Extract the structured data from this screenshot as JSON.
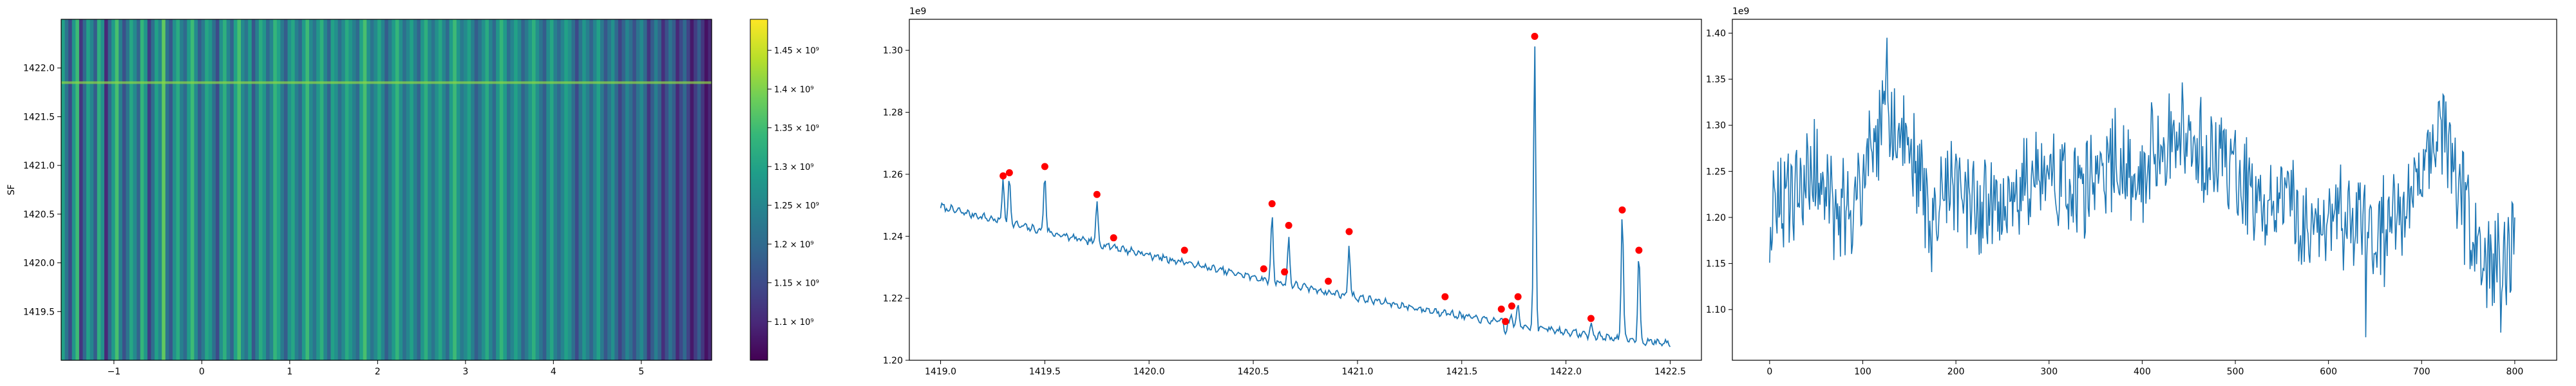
{
  "figure": {
    "heatmap_ylabel": "SF",
    "offset_line": "1e9",
    "offset_random": "1e9"
  },
  "chart_data": [
    {
      "type": "heatmap",
      "title": "",
      "xlabel": "",
      "ylabel": "SF",
      "xlim": [
        -1.6,
        5.8
      ],
      "ylim": [
        1419.0,
        1422.5
      ],
      "xticks": [
        -1,
        0,
        1,
        2,
        3,
        4,
        5
      ],
      "yticks": [
        1419.5,
        1420.0,
        1420.5,
        1421.0,
        1421.5,
        1422.0
      ],
      "colormap": "viridis",
      "colorbar": {
        "range": [
          1050000000,
          1490000000
        ],
        "ticks": [
          1100000000,
          1150000000,
          1200000000,
          1250000000,
          1300000000,
          1350000000,
          1400000000,
          1450000000
        ],
        "tick_labels": [
          "1.1 × 10⁹",
          "1.15 × 10⁹",
          "1.2 × 10⁹",
          "1.25 × 10⁹",
          "1.3 × 10⁹",
          "1.35 × 10⁹",
          "1.4 × 10⁹",
          "1.45 × 10⁹"
        ]
      },
      "columns": [
        1300000000.0,
        1220000000.0,
        1150000000.0,
        1280000000.0,
        1350000000.0,
        1120000000.0,
        1200000000.0,
        1300000000.0,
        1250000000.0,
        1180000000.0,
        1330000000.0,
        1270000000.0,
        1100000000.0,
        1200000000.0,
        1290000000.0,
        1360000000.0,
        1240000000.0,
        1160000000.0,
        1220000000.0,
        1310000000.0,
        1260000000.0,
        1190000000.0,
        1340000000.0,
        1280000000.0,
        1130000000.0,
        1210000000.0,
        1300000000.0,
        1250000000.0,
        1380000000.0,
        1220000000.0,
        1170000000.0,
        1270000000.0,
        1320000000.0,
        1240000000.0,
        1200000000.0,
        1290000000.0,
        1350000000.0,
        1260000000.0,
        1180000000.0,
        1230000000.0,
        1310000000.0,
        1280000000.0,
        1210000000.0,
        1150000000.0,
        1270000000.0,
        1330000000.0,
        1250000000.0,
        1190000000.0,
        1300000000.0,
        1360000000.0,
        1260000000.0,
        1220000000.0,
        1290000000.0,
        1170000000.0,
        1240000000.0,
        1320000000.0,
        1280000000.0,
        1200000000.0,
        1250000000.0,
        1340000000.0,
        1300000000.0,
        1230000000.0,
        1180000000.0,
        1270000000.0,
        1310000000.0,
        1240000000.0,
        1200000000.0,
        1290000000.0,
        1350000000.0,
        1260000000.0,
        1220000000.0,
        1280000000.0,
        1330000000.0,
        1250000000.0,
        1190000000.0,
        1300000000.0,
        1270000000.0,
        1210000000.0,
        1260000000.0,
        1320000000.0,
        1280000000.0,
        1240000000.0,
        1200000000.0,
        1300000000.0,
        1360000000.0,
        1270000000.0,
        1220000000.0,
        1260000000.0,
        1310000000.0,
        1250000000.0,
        1180000000.0,
        1230000000.0,
        1290000000.0,
        1340000000.0,
        1270000000.0,
        1210000000.0,
        1250000000.0,
        1300000000.0,
        1240000000.0,
        1190000000.0,
        1280000000.0,
        1330000000.0,
        1260000000.0,
        1220000000.0,
        1270000000.0,
        1310000000.0,
        1250000000.0,
        1200000000.0,
        1290000000.0,
        1350000000.0,
        1280000000.0,
        1230000000.0,
        1260000000.0,
        1300000000.0,
        1240000000.0,
        1180000000.0,
        1220000000.0,
        1270000000.0,
        1320000000.0,
        1250000000.0,
        1200000000.0,
        1280000000.0,
        1340000000.0,
        1290000000.0,
        1210000000.0,
        1250000000.0,
        1300000000.0,
        1260000000.0,
        1190000000.0,
        1230000000.0,
        1280000000.0,
        1330000000.0,
        1270000000.0,
        1220000000.0,
        1180000000.0,
        1260000000.0,
        1310000000.0,
        1240000000.0,
        1200000000.0,
        1250000000.0,
        1300000000.0,
        1270000000.0,
        1210000000.0,
        1150000000.0,
        1220000000.0,
        1280000000.0,
        1240000000.0,
        1190000000.0,
        1250000000.0,
        1300000000.0,
        1230000000.0,
        1170000000.0,
        1220000000.0,
        1270000000.0,
        1200000000.0,
        1140000000.0,
        1190000000.0,
        1250000000.0,
        1210000000.0,
        1160000000.0,
        1220000000.0,
        1260000000.0,
        1200000000.0,
        1120000000.0,
        1180000000.0,
        1240000000.0,
        1190000000.0,
        1110000000.0,
        1160000000.0,
        1220000000.0,
        1180000000.0,
        1100000000.0,
        1150000000.0,
        1200000000.0,
        1140000000.0,
        1080000000.0,
        1130000000.0,
        1180000000.0,
        1120000000.0,
        1070000000.0,
        1100000000.0
      ],
      "highlight_row_y": 1421.85
    },
    {
      "type": "line",
      "title": "",
      "xlabel": "",
      "ylabel": "",
      "offset_text": "1e9",
      "xlim": [
        1418.85,
        1422.65
      ],
      "ylim": [
        1200000000.0,
        1310000000.0
      ],
      "xticks": [
        1419.0,
        1419.5,
        1420.0,
        1420.5,
        1421.0,
        1421.5,
        1422.0,
        1422.5
      ],
      "yticks": [
        1.2,
        1.22,
        1.24,
        1.26,
        1.28,
        1.3
      ],
      "x_start": 1419.0,
      "x_end": 1422.5,
      "baseline_start": 1249500000.0,
      "baseline_end": 1205500000.0,
      "peaks": [
        {
          "x": 1419.3,
          "y": 1259500000.0
        },
        {
          "x": 1419.33,
          "y": 1260500000.0
        },
        {
          "x": 1419.5,
          "y": 1262500000.0
        },
        {
          "x": 1419.75,
          "y": 1253500000.0
        },
        {
          "x": 1419.83,
          "y": 1239500000.0
        },
        {
          "x": 1420.17,
          "y": 1235500000.0
        },
        {
          "x": 1420.55,
          "y": 1229500000.0
        },
        {
          "x": 1420.59,
          "y": 1250500000.0
        },
        {
          "x": 1420.65,
          "y": 1228500000.0
        },
        {
          "x": 1420.67,
          "y": 1243500000.0
        },
        {
          "x": 1420.86,
          "y": 1225500000.0
        },
        {
          "x": 1420.96,
          "y": 1241500000.0
        },
        {
          "x": 1421.42,
          "y": 1220500000.0
        },
        {
          "x": 1421.69,
          "y": 1216500000.0
        },
        {
          "x": 1421.71,
          "y": 1212500000.0
        },
        {
          "x": 1421.74,
          "y": 1217500000.0
        },
        {
          "x": 1421.77,
          "y": 1220500000.0
        },
        {
          "x": 1421.85,
          "y": 1304500000.0
        },
        {
          "x": 1422.12,
          "y": 1213500000.0
        },
        {
          "x": 1422.27,
          "y": 1248500000.0
        },
        {
          "x": 1422.35,
          "y": 1235500000.0
        }
      ],
      "marker_color": "#ff0000",
      "line_color": "#1f77b4"
    },
    {
      "type": "line",
      "title": "",
      "xlabel": "",
      "ylabel": "",
      "offset_text": "1e9",
      "xlim": [
        -40,
        845
      ],
      "ylim": [
        1045000000.0,
        1415000000.0
      ],
      "xticks": [
        0,
        100,
        200,
        300,
        400,
        500,
        600,
        700,
        800
      ],
      "yticks": [
        1.1,
        1.15,
        1.2,
        1.25,
        1.3,
        1.35,
        1.4
      ],
      "x_range": [
        0,
        800
      ],
      "anchors": [
        [
          0,
          1190000000.0
        ],
        [
          25,
          1230000000.0
        ],
        [
          50,
          1250000000.0
        ],
        [
          75,
          1190000000.0
        ],
        [
          100,
          1240000000.0
        ],
        [
          125,
          1310000000.0
        ],
        [
          150,
          1270000000.0
        ],
        [
          175,
          1200000000.0
        ],
        [
          200,
          1240000000.0
        ],
        [
          225,
          1210000000.0
        ],
        [
          250,
          1200000000.0
        ],
        [
          275,
          1230000000.0
        ],
        [
          300,
          1250000000.0
        ],
        [
          325,
          1220000000.0
        ],
        [
          350,
          1240000000.0
        ],
        [
          375,
          1260000000.0
        ],
        [
          400,
          1250000000.0
        ],
        [
          425,
          1280000000.0
        ],
        [
          450,
          1290000000.0
        ],
        [
          475,
          1260000000.0
        ],
        [
          500,
          1250000000.0
        ],
        [
          525,
          1210000000.0
        ],
        [
          550,
          1220000000.0
        ],
        [
          575,
          1190000000.0
        ],
        [
          600,
          1200000000.0
        ],
        [
          625,
          1200000000.0
        ],
        [
          650,
          1170000000.0
        ],
        [
          675,
          1200000000.0
        ],
        [
          700,
          1250000000.0
        ],
        [
          725,
          1290000000.0
        ],
        [
          750,
          1200000000.0
        ],
        [
          775,
          1150000000.0
        ],
        [
          800,
          1160000000.0
        ]
      ],
      "line_color": "#1f77b4"
    }
  ]
}
